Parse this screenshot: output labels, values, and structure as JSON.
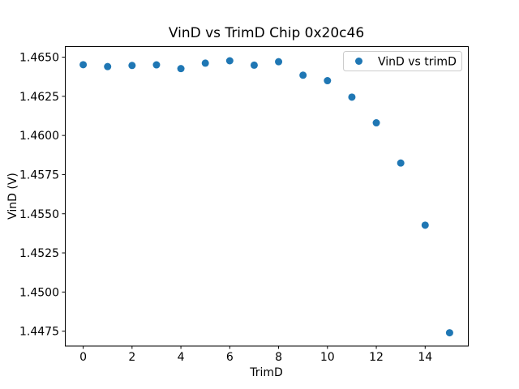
{
  "chart_data": {
    "type": "scatter",
    "title": "VinD vs TrimD Chip 0x20c46",
    "xlabel": "TrimD",
    "ylabel": "VinD (V)",
    "legend": [
      "VinD vs trimD"
    ],
    "legend_position": "upper right",
    "marker_color": "#1f77b4",
    "grid": false,
    "x": [
      0,
      1,
      2,
      3,
      4,
      5,
      6,
      7,
      8,
      9,
      10,
      11,
      12,
      13,
      14,
      15
    ],
    "y": [
      1.46452,
      1.4644,
      1.46447,
      1.46451,
      1.46427,
      1.46462,
      1.46477,
      1.46449,
      1.46471,
      1.46385,
      1.4635,
      1.46245,
      1.46081,
      1.45824,
      1.45427,
      1.4474
    ],
    "xlim": [
      -0.75,
      15.75
    ],
    "ylim": [
      1.44655,
      1.46565
    ],
    "x_ticks": [
      0,
      2,
      4,
      6,
      8,
      10,
      12,
      14
    ],
    "x_tick_labels": [
      "0",
      "2",
      "4",
      "6",
      "8",
      "10",
      "12",
      "14"
    ],
    "y_ticks": [
      1.4475,
      1.45,
      1.4525,
      1.455,
      1.4575,
      1.46,
      1.4625,
      1.465
    ],
    "y_tick_labels": [
      "1.4475",
      "1.4500",
      "1.4525",
      "1.4550",
      "1.4575",
      "1.4600",
      "1.4625",
      "1.4650"
    ]
  }
}
